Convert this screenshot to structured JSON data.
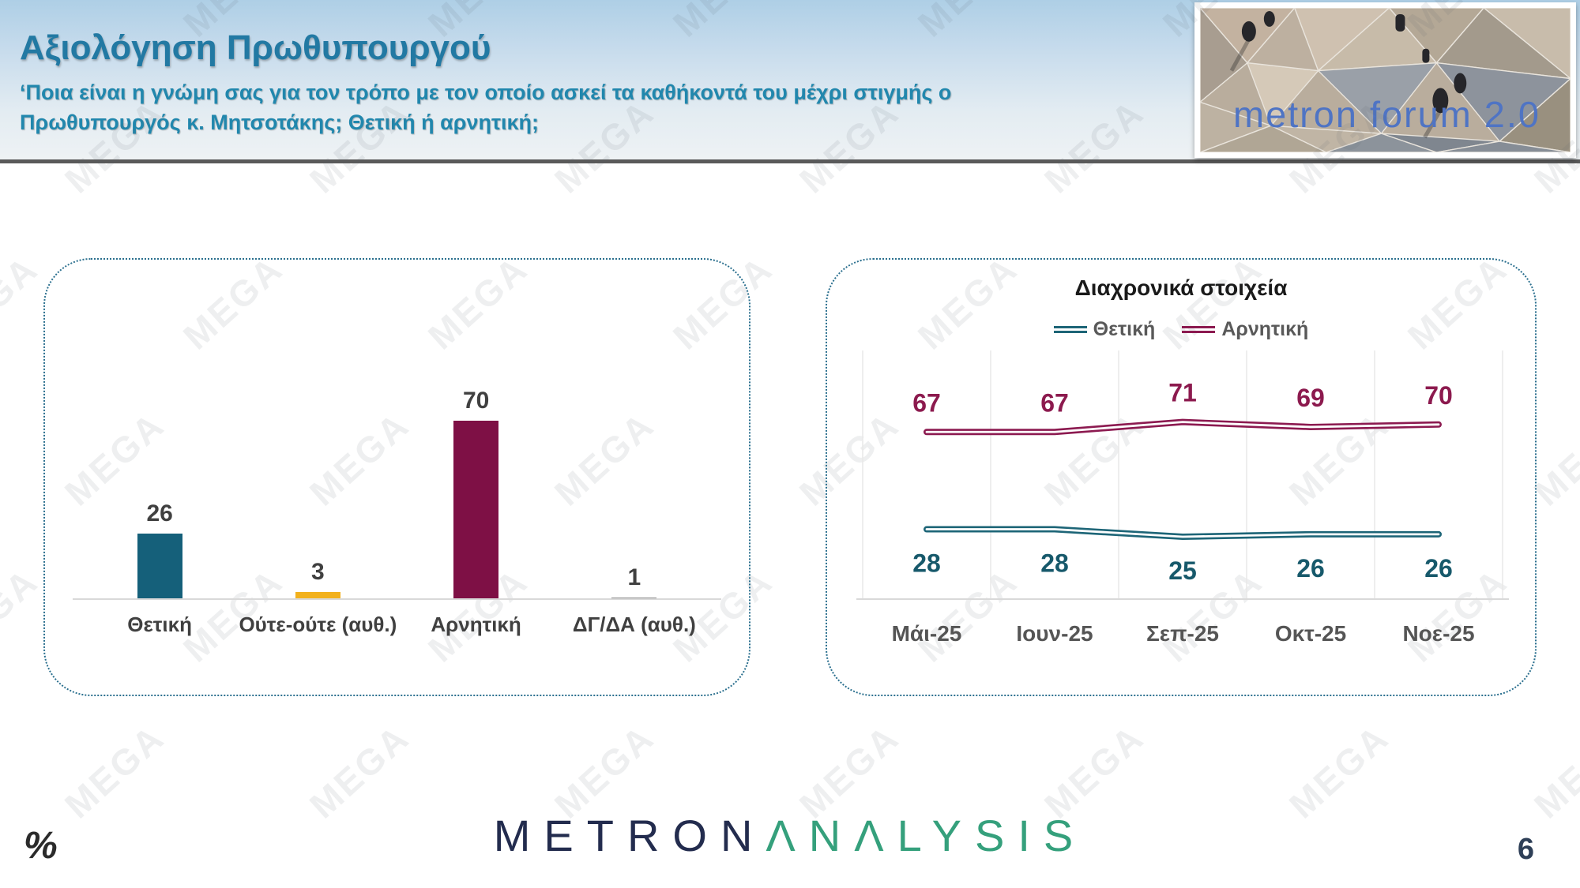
{
  "header": {
    "title": "Αξιολόγηση Πρωθυπουργού",
    "subtitle": "‘Ποια είναι η γνώμη σας για τον τρόπο με τον οποίο ασκεί τα καθήκοντά του μέχρι στιγμής ο Πρωθυπουργός κ. Μητσοτάκης; Θετική ή αρνητική;"
  },
  "logo": {
    "text": "metron forum 2.0",
    "text_color": "#4f74c4"
  },
  "watermark": {
    "text": "MEGA"
  },
  "footer": {
    "percent_symbol": "%",
    "brand_metron": "METRON",
    "brand_analysis": "ΛΝΛLYSIS",
    "page_number": "6"
  },
  "colors": {
    "positive_teal": "#15607a",
    "neutral_yellow": "#f2b11d",
    "negative_maroon": "#7e1045",
    "dk_gray": "#8f8f8f",
    "label_gray": "#404040",
    "axis_gray": "#d9d9d9",
    "grid_gray": "#e8e8e8",
    "panel_border": "#2a6f8e"
  },
  "chart_data": [
    {
      "type": "bar",
      "title": "",
      "categories": [
        "Θετική",
        "Ούτε-ούτε (αυθ.)",
        "Αρνητική",
        "ΔΓ/ΔΑ (αυθ.)"
      ],
      "values": [
        26,
        3,
        70,
        1
      ],
      "bar_colors": [
        "#15607a",
        "#f2b11d",
        "#7e1045",
        "#8f8f8f"
      ],
      "ylim": [
        0,
        100
      ],
      "grid": false,
      "data_labels": true
    },
    {
      "type": "line",
      "title": "Διαχρονικά στοιχεία",
      "categories": [
        "Μάι-25",
        "Ιουν-25",
        "Σεπ-25",
        "Οκτ-25",
        "Νοε-25"
      ],
      "series": [
        {
          "name": "Θετική",
          "color": "#1d6577",
          "label_color": "#17596b",
          "values": [
            28,
            28,
            25,
            26,
            26
          ],
          "label_position": "below"
        },
        {
          "name": "Αρνητική",
          "color": "#8c1a50",
          "label_color": "#8c1a4e",
          "values": [
            67,
            67,
            71,
            69,
            70
          ],
          "label_position": "above"
        }
      ],
      "ylim": [
        0,
        100
      ],
      "grid": "vertical",
      "legend_position": "top",
      "data_labels": true
    }
  ]
}
